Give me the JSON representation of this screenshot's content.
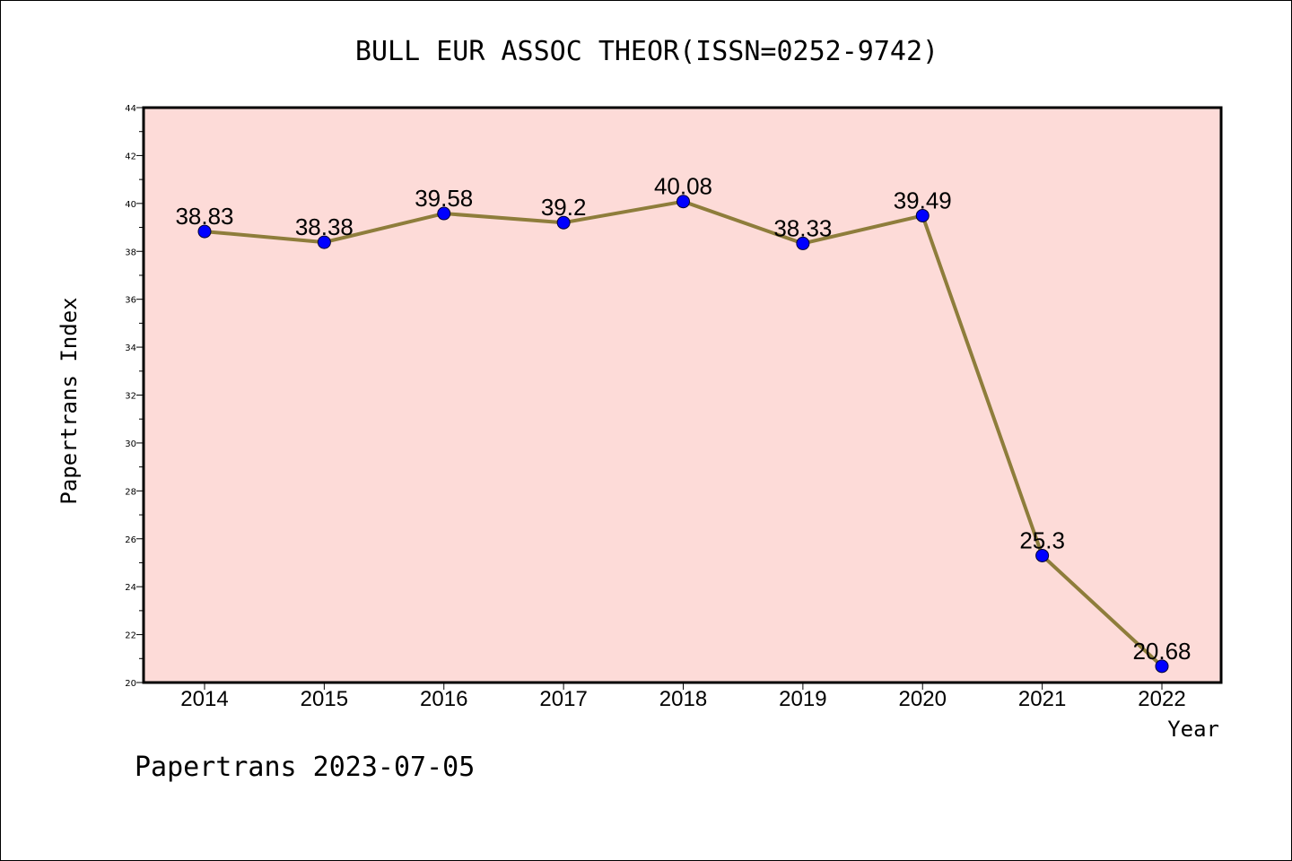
{
  "chart_data": {
    "type": "line",
    "title": "BULL EUR ASSOC THEOR(ISSN=0252-9742)",
    "xlabel": "Year",
    "ylabel": "Papertrans Index",
    "categories": [
      "2014",
      "2015",
      "2016",
      "2017",
      "2018",
      "2019",
      "2020",
      "2021",
      "2022"
    ],
    "values": [
      38.83,
      38.38,
      39.58,
      39.2,
      40.08,
      38.33,
      39.49,
      25.3,
      20.68
    ],
    "data_labels": [
      "38.83",
      "38.38",
      "39.58",
      "39.2",
      "40.08",
      "38.33",
      "39.49",
      "25.3",
      "20.68"
    ],
    "yticks": [
      "20",
      "22",
      "24",
      "26",
      "28",
      "30",
      "32",
      "34",
      "36",
      "38",
      "40",
      "42",
      "44"
    ],
    "ylim": [
      20,
      44
    ],
    "grid": false,
    "legend": "none",
    "colors": {
      "plot_background": "#fddbd8",
      "line": "#8e7d3b",
      "marker": "#0000ff"
    }
  },
  "footer": "Papertrans 2023-07-05"
}
